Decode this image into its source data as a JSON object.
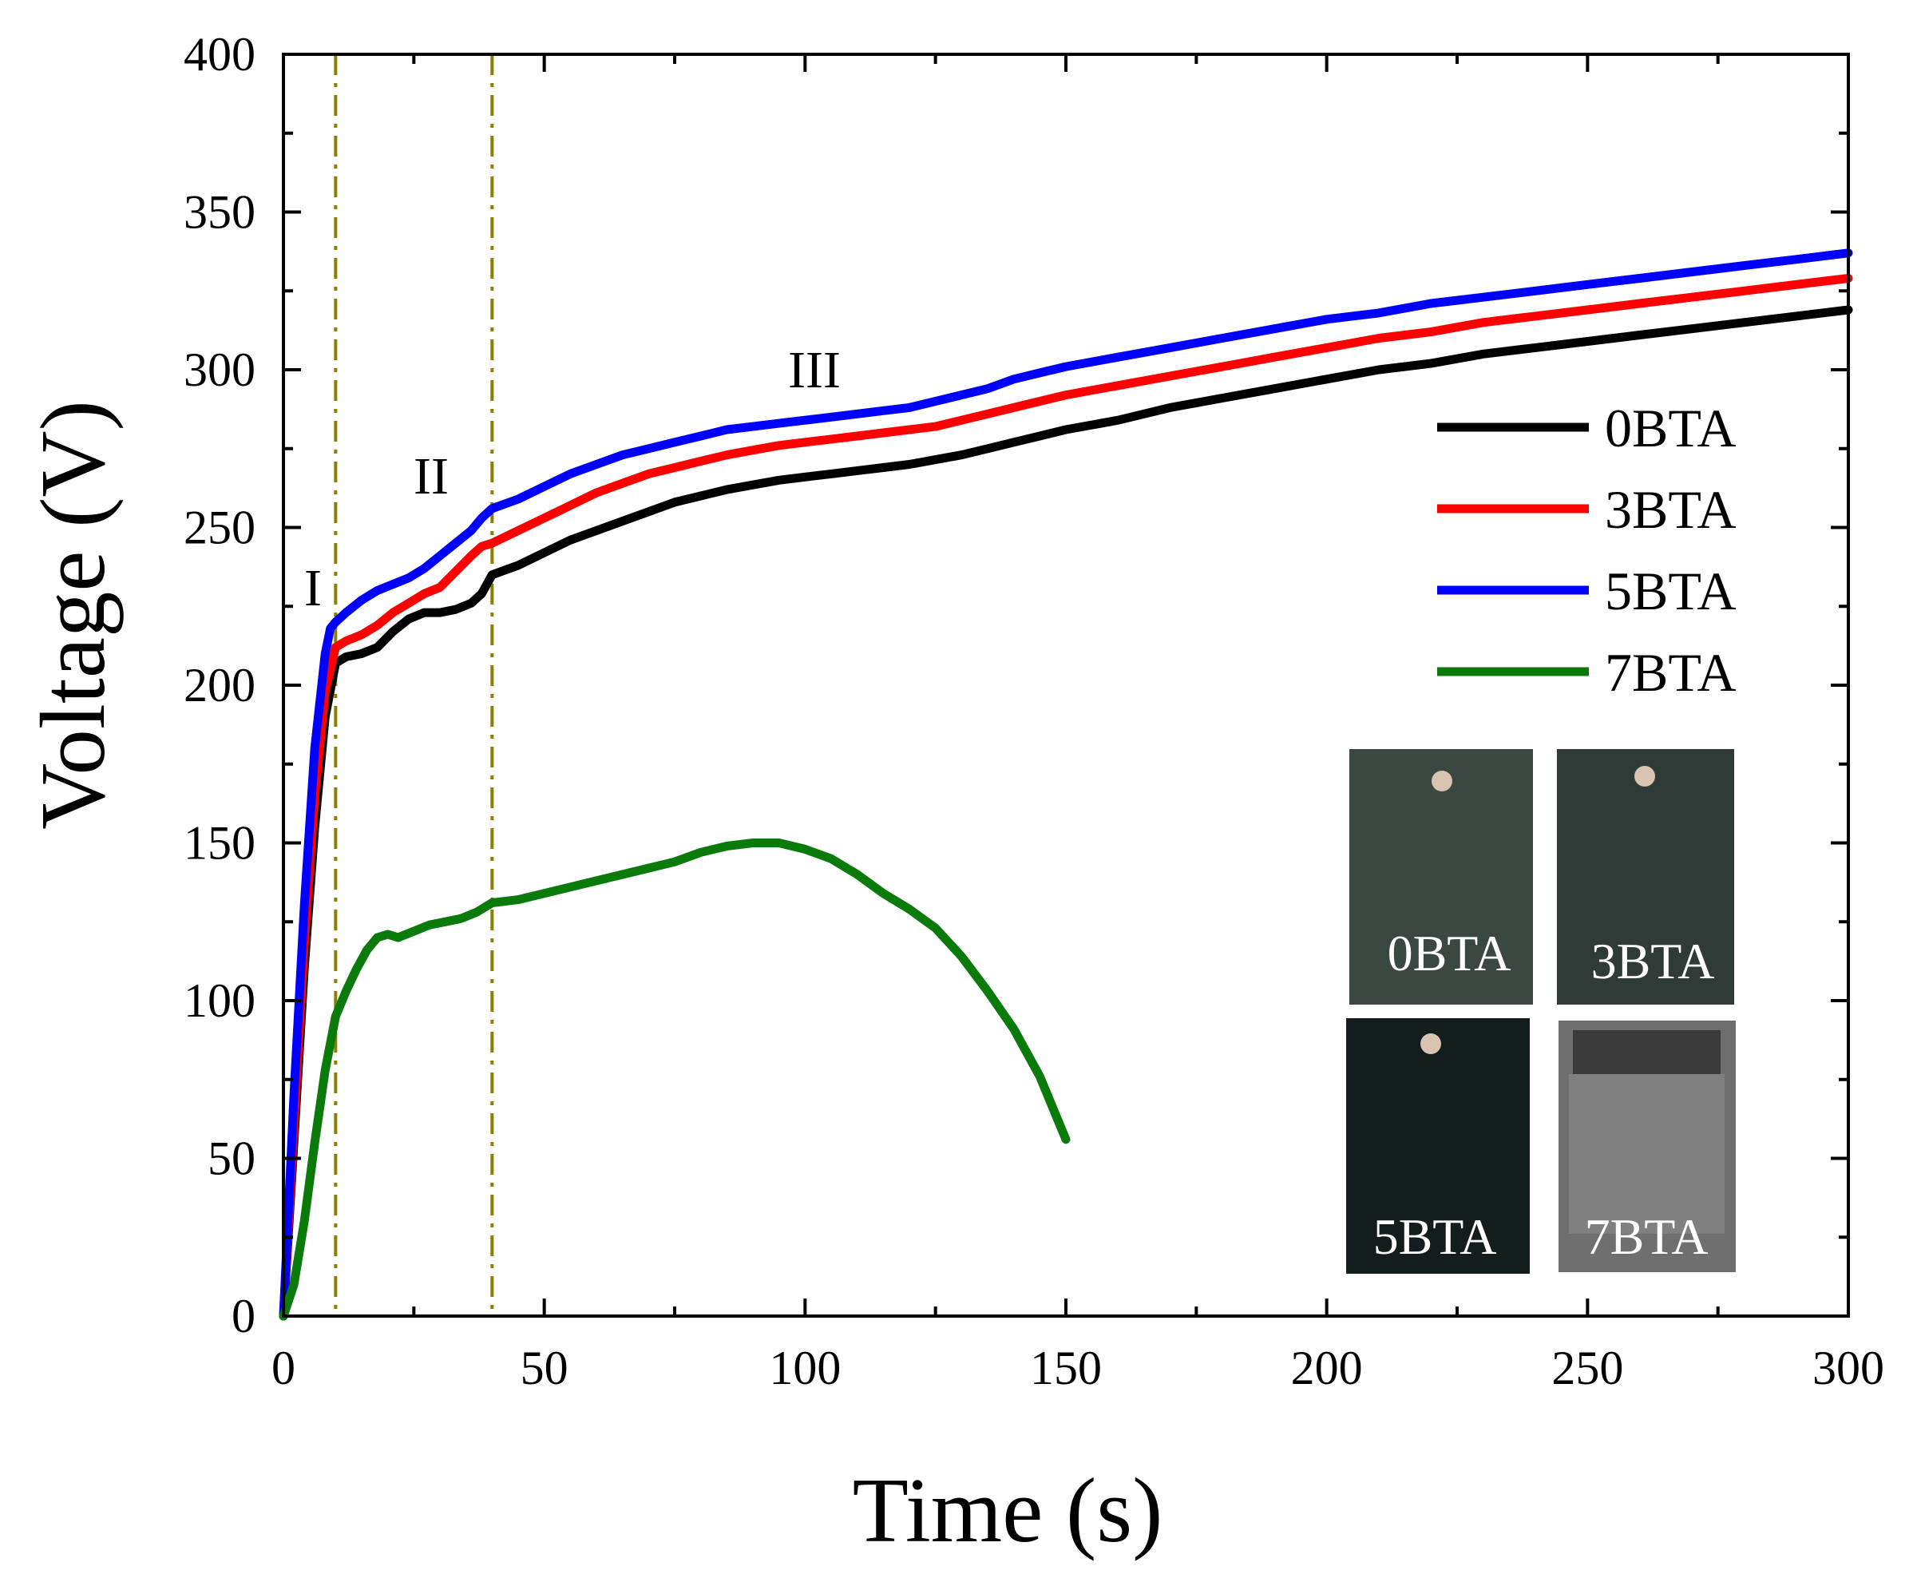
{
  "chart_data": {
    "type": "line",
    "title": "",
    "xlabel": "Time (s)",
    "ylabel": "Voltage (V)",
    "xlim": [
      0,
      300
    ],
    "ylim": [
      0,
      400
    ],
    "xticks": [
      0,
      50,
      100,
      150,
      200,
      250,
      300
    ],
    "yticks": [
      0,
      50,
      100,
      150,
      200,
      250,
      300,
      350,
      400
    ],
    "grid": false,
    "legend_position": "right",
    "series": [
      {
        "name": "0BTA",
        "color": "#000000",
        "points": [
          [
            0,
            0
          ],
          [
            2,
            55
          ],
          [
            4,
            110
          ],
          [
            6,
            155
          ],
          [
            8,
            190
          ],
          [
            10,
            207
          ],
          [
            12,
            209
          ],
          [
            15,
            210
          ],
          [
            18,
            212
          ],
          [
            21,
            217
          ],
          [
            24,
            221
          ],
          [
            27,
            223
          ],
          [
            30,
            223
          ],
          [
            33,
            224
          ],
          [
            36,
            226
          ],
          [
            38,
            229
          ],
          [
            40,
            235
          ],
          [
            45,
            238
          ],
          [
            50,
            242
          ],
          [
            55,
            246
          ],
          [
            60,
            249
          ],
          [
            65,
            252
          ],
          [
            70,
            255
          ],
          [
            75,
            258
          ],
          [
            80,
            260
          ],
          [
            85,
            262
          ],
          [
            90,
            263.5
          ],
          [
            95,
            265
          ],
          [
            100,
            266
          ],
          [
            105,
            267
          ],
          [
            110,
            268
          ],
          [
            115,
            269
          ],
          [
            120,
            270
          ],
          [
            125,
            271.5
          ],
          [
            130,
            273
          ],
          [
            135,
            275
          ],
          [
            140,
            277
          ],
          [
            145,
            279
          ],
          [
            150,
            281
          ],
          [
            160,
            284
          ],
          [
            170,
            288
          ],
          [
            180,
            291
          ],
          [
            190,
            294
          ],
          [
            200,
            297
          ],
          [
            210,
            300
          ],
          [
            220,
            302
          ],
          [
            230,
            305
          ],
          [
            240,
            307
          ],
          [
            250,
            309
          ],
          [
            260,
            311
          ],
          [
            270,
            313
          ],
          [
            280,
            315
          ],
          [
            290,
            317
          ],
          [
            300,
            319
          ]
        ]
      },
      {
        "name": "3BTA",
        "color": "#ff0000",
        "points": [
          [
            0,
            0
          ],
          [
            2,
            60
          ],
          [
            4,
            118
          ],
          [
            6,
            165
          ],
          [
            8,
            198
          ],
          [
            10,
            212
          ],
          [
            12,
            214
          ],
          [
            15,
            216
          ],
          [
            18,
            219
          ],
          [
            21,
            223
          ],
          [
            24,
            226
          ],
          [
            27,
            229
          ],
          [
            30,
            231
          ],
          [
            33,
            236
          ],
          [
            36,
            241
          ],
          [
            38,
            244
          ],
          [
            40,
            245
          ],
          [
            45,
            249
          ],
          [
            50,
            253
          ],
          [
            55,
            257
          ],
          [
            60,
            261
          ],
          [
            65,
            264
          ],
          [
            70,
            267
          ],
          [
            75,
            269
          ],
          [
            80,
            271
          ],
          [
            85,
            273
          ],
          [
            90,
            274.5
          ],
          [
            95,
            276
          ],
          [
            100,
            277
          ],
          [
            105,
            278
          ],
          [
            110,
            279
          ],
          [
            115,
            280
          ],
          [
            120,
            281
          ],
          [
            125,
            282
          ],
          [
            130,
            284
          ],
          [
            135,
            286
          ],
          [
            140,
            288
          ],
          [
            145,
            290
          ],
          [
            150,
            292
          ],
          [
            160,
            295
          ],
          [
            170,
            298
          ],
          [
            180,
            301
          ],
          [
            190,
            304
          ],
          [
            200,
            307
          ],
          [
            210,
            310
          ],
          [
            220,
            312
          ],
          [
            230,
            315
          ],
          [
            240,
            317
          ],
          [
            250,
            319
          ],
          [
            260,
            321
          ],
          [
            270,
            323
          ],
          [
            280,
            325
          ],
          [
            290,
            327
          ],
          [
            300,
            329
          ]
        ]
      },
      {
        "name": "5BTA",
        "color": "#0000ff",
        "points": [
          [
            0,
            0
          ],
          [
            2,
            70
          ],
          [
            4,
            130
          ],
          [
            6,
            180
          ],
          [
            8,
            210
          ],
          [
            9,
            218
          ],
          [
            10,
            220
          ],
          [
            12,
            223
          ],
          [
            15,
            227
          ],
          [
            18,
            230
          ],
          [
            21,
            232
          ],
          [
            24,
            234
          ],
          [
            27,
            237
          ],
          [
            30,
            241
          ],
          [
            33,
            245
          ],
          [
            36,
            249
          ],
          [
            38,
            253
          ],
          [
            40,
            256
          ],
          [
            45,
            259
          ],
          [
            50,
            263
          ],
          [
            55,
            267
          ],
          [
            60,
            270
          ],
          [
            65,
            273
          ],
          [
            70,
            275
          ],
          [
            75,
            277
          ],
          [
            80,
            279
          ],
          [
            85,
            281
          ],
          [
            90,
            282
          ],
          [
            95,
            283
          ],
          [
            100,
            284
          ],
          [
            105,
            285
          ],
          [
            110,
            286
          ],
          [
            115,
            287
          ],
          [
            120,
            288
          ],
          [
            125,
            290
          ],
          [
            130,
            292
          ],
          [
            135,
            294
          ],
          [
            140,
            297
          ],
          [
            145,
            299
          ],
          [
            150,
            301
          ],
          [
            160,
            304
          ],
          [
            170,
            307
          ],
          [
            180,
            310
          ],
          [
            190,
            313
          ],
          [
            200,
            316
          ],
          [
            210,
            318
          ],
          [
            220,
            321
          ],
          [
            230,
            323
          ],
          [
            240,
            325
          ],
          [
            250,
            327
          ],
          [
            260,
            329
          ],
          [
            270,
            331
          ],
          [
            280,
            333
          ],
          [
            290,
            335
          ],
          [
            300,
            337
          ]
        ]
      },
      {
        "name": "7BTA",
        "color": "#0a7a0a",
        "points": [
          [
            0,
            0
          ],
          [
            2,
            10
          ],
          [
            4,
            30
          ],
          [
            6,
            55
          ],
          [
            8,
            78
          ],
          [
            10,
            95
          ],
          [
            12,
            103
          ],
          [
            14,
            110
          ],
          [
            16,
            116
          ],
          [
            18,
            120
          ],
          [
            20,
            121
          ],
          [
            22,
            120
          ],
          [
            25,
            122
          ],
          [
            28,
            124
          ],
          [
            31,
            125
          ],
          [
            34,
            126
          ],
          [
            37,
            128
          ],
          [
            40,
            131
          ],
          [
            45,
            132
          ],
          [
            50,
            134
          ],
          [
            55,
            136
          ],
          [
            60,
            138
          ],
          [
            65,
            140
          ],
          [
            70,
            142
          ],
          [
            75,
            144
          ],
          [
            80,
            147
          ],
          [
            85,
            149
          ],
          [
            90,
            150
          ],
          [
            95,
            150
          ],
          [
            100,
            148
          ],
          [
            105,
            145
          ],
          [
            110,
            140
          ],
          [
            115,
            134
          ],
          [
            120,
            129
          ],
          [
            125,
            123
          ],
          [
            130,
            114
          ],
          [
            135,
            103
          ],
          [
            140,
            91
          ],
          [
            145,
            76
          ],
          [
            150,
            56
          ]
        ]
      }
    ],
    "vertical_lines": [
      10,
      40
    ],
    "region_labels": [
      "I",
      "II",
      "III"
    ],
    "inset": {
      "labels": [
        "0BTA",
        "3BTA",
        "5BTA",
        "7BTA"
      ]
    }
  }
}
